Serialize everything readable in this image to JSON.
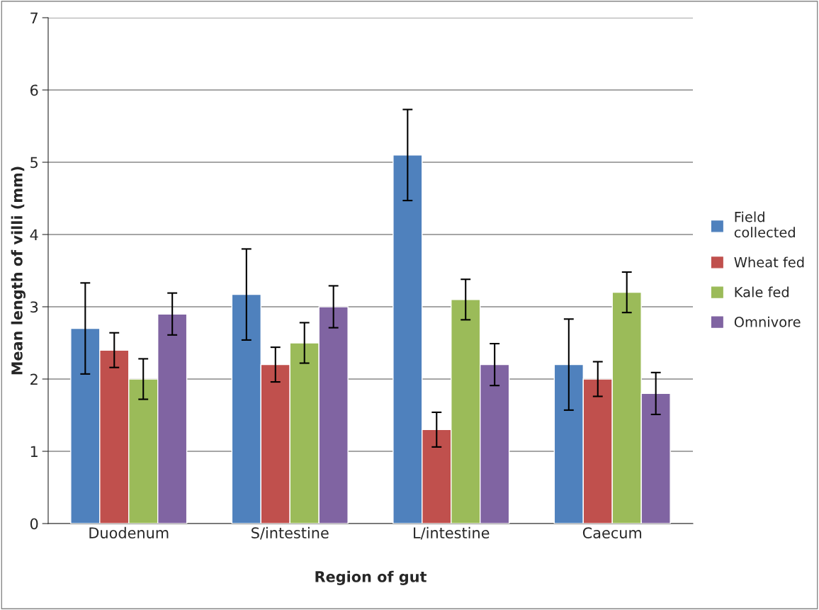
{
  "chart_data": {
    "type": "bar",
    "xlabel": "Region of gut",
    "ylabel": "Mean length of villi (mm)",
    "categories": [
      "Duodenum",
      "S/intestine",
      "L/intestine",
      "Caecum"
    ],
    "series": [
      {
        "name": "Field collected",
        "color": "#4f81bd",
        "values": [
          2.7,
          3.17,
          5.1,
          2.2
        ],
        "errors": [
          0.63,
          0.63,
          0.63,
          0.63
        ]
      },
      {
        "name": "Wheat fed",
        "color": "#c0504d",
        "values": [
          2.4,
          2.2,
          1.3,
          2.0
        ],
        "errors": [
          0.24,
          0.24,
          0.24,
          0.24
        ]
      },
      {
        "name": "Kale fed",
        "color": "#9bbb59",
        "values": [
          2.0,
          2.5,
          3.1,
          3.2
        ],
        "errors": [
          0.28,
          0.28,
          0.28,
          0.28
        ]
      },
      {
        "name": "Omnivore",
        "color": "#8064a2",
        "values": [
          2.9,
          3.0,
          2.2,
          1.8
        ],
        "errors": [
          0.29,
          0.29,
          0.29,
          0.29
        ]
      }
    ],
    "ylim": [
      0,
      7
    ],
    "yticks": [
      0,
      1,
      2,
      3,
      4,
      5,
      6,
      7
    ],
    "grid": "y",
    "legend": "right"
  }
}
